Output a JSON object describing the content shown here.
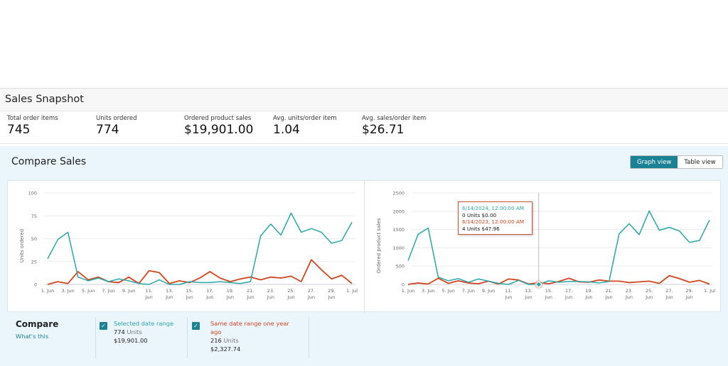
{
  "header": {
    "title": "Sales Snapshot"
  },
  "metrics": [
    {
      "label": "Total order items",
      "value": "745"
    },
    {
      "label": "Units ordered",
      "value": "774"
    },
    {
      "label": "Ordered product sales",
      "value": "$19,901.00"
    },
    {
      "label": "Avg. units/order item",
      "value": "1.04"
    },
    {
      "label": "Avg. sales/order item",
      "value": "$26.71"
    }
  ],
  "compare_sales": {
    "title": "Compare Sales",
    "graph_view": "Graph view",
    "table_view": "Table view",
    "active_view": "Graph view"
  },
  "colors": {
    "current": "#2aa6a8",
    "previous": "#d2451e",
    "accent": "#1b8296"
  },
  "chart_data": [
    {
      "type": "line",
      "ylabel": "Units ordered",
      "ylim": [
        0,
        100
      ],
      "yticks": [
        "0",
        "25",
        "50",
        "75",
        "100"
      ],
      "grid": true,
      "x": [
        "1. Jun",
        "2. Jun",
        "3. Jun",
        "4. Jun",
        "5. Jun",
        "6. Jun",
        "7. Jun",
        "8. Jun",
        "9. Jun",
        "10. Jun",
        "11. Jun",
        "12. Jun",
        "13. Jun",
        "14. Jun",
        "15. Jun",
        "16. Jun",
        "17. Jun",
        "18. Jun",
        "19. Jun",
        "20. Jun",
        "21. Jun",
        "22. Jun",
        "23. Jun",
        "24. Jun",
        "25. Jun",
        "26. Jun",
        "27. Jun",
        "28. Jun",
        "29. Jun",
        "30. Jun",
        "1. Jul"
      ],
      "xticks": [
        [
          "1. Jun"
        ],
        [
          "3. Jun"
        ],
        [
          "5. Jun"
        ],
        [
          "7. Jun"
        ],
        [
          "9. Jun"
        ],
        [
          "11.",
          "Jun"
        ],
        [
          "13.",
          "Jun"
        ],
        [
          "15.",
          "Jun"
        ],
        [
          "17.",
          "Jun"
        ],
        [
          "19.",
          "Jun"
        ],
        [
          "21.",
          "Jun"
        ],
        [
          "23.",
          "Jun"
        ],
        [
          "25.",
          "Jun"
        ],
        [
          "27.",
          "Jun"
        ],
        [
          "29.",
          "Jun"
        ],
        [
          "1. Jul"
        ]
      ],
      "series": [
        {
          "values": [
            28,
            49,
            57,
            8,
            4,
            7,
            3,
            6,
            4,
            1,
            0,
            5,
            0,
            0,
            3,
            2,
            2,
            3,
            2,
            1,
            3,
            53,
            66,
            54,
            78,
            57,
            61,
            57,
            45,
            48,
            68
          ]
        },
        {
          "values": [
            0,
            3,
            1,
            14,
            5,
            8,
            3,
            2,
            8,
            1,
            15,
            13,
            1,
            4,
            2,
            7,
            14,
            7,
            3,
            6,
            8,
            5,
            8,
            7,
            9,
            3,
            27,
            16,
            6,
            10,
            1
          ]
        }
      ]
    },
    {
      "type": "line",
      "ylabel": "Ordered product sales",
      "ylim": [
        0,
        2500
      ],
      "yticks": [
        "0",
        "500",
        "1000",
        "1500",
        "2000",
        "2500"
      ],
      "grid": true,
      "xticks": [
        [
          "1. Jun"
        ],
        [
          "3. Jun"
        ],
        [
          "5. Jun"
        ],
        [
          "7. Jun"
        ],
        [
          "9. Jun"
        ],
        [
          "11.",
          "Jun"
        ],
        [
          "13.",
          "Jun"
        ],
        [
          "15.",
          "Jun"
        ],
        [
          "17.",
          "Jun"
        ],
        [
          "19.",
          "Jun"
        ],
        [
          "21.",
          "Jun"
        ],
        [
          "23.",
          "Jun"
        ],
        [
          "25.",
          "Jun"
        ],
        [
          "27.",
          "Jun"
        ],
        [
          "29.",
          "Jun"
        ],
        [
          "1. Jul"
        ]
      ],
      "series": [
        {
          "values": [
            650,
            1370,
            1540,
            200,
            100,
            160,
            60,
            150,
            90,
            30,
            0,
            110,
            0,
            0,
            100,
            60,
            80,
            80,
            70,
            40,
            80,
            1380,
            1660,
            1360,
            2010,
            1480,
            1560,
            1460,
            1150,
            1200,
            1760
          ]
        },
        {
          "values": [
            0,
            40,
            10,
            170,
            30,
            100,
            40,
            20,
            90,
            10,
            150,
            120,
            10,
            47.96,
            20,
            80,
            170,
            70,
            60,
            120,
            90,
            90,
            50,
            70,
            90,
            30,
            240,
            160,
            60,
            110,
            10
          ]
        }
      ],
      "tooltip": {
        "date_current": "6/14/2024, 12:00:00 AM",
        "value_current": "0 Units $0.00",
        "date_previous": "6/14/2023, 12:00:00 AM",
        "value_previous": "4 Units $47.96"
      }
    }
  ],
  "compare": {
    "title": "Compare",
    "whats_this": "What's this",
    "selected": {
      "label": "Selected date range",
      "units": "774",
      "units_label": "Units",
      "sales": "$19,901.00",
      "checked": true
    },
    "previous": {
      "label": "Same date range one year ago",
      "units": "216",
      "units_label": "Units",
      "sales": "$2,327.74",
      "checked": true
    }
  }
}
